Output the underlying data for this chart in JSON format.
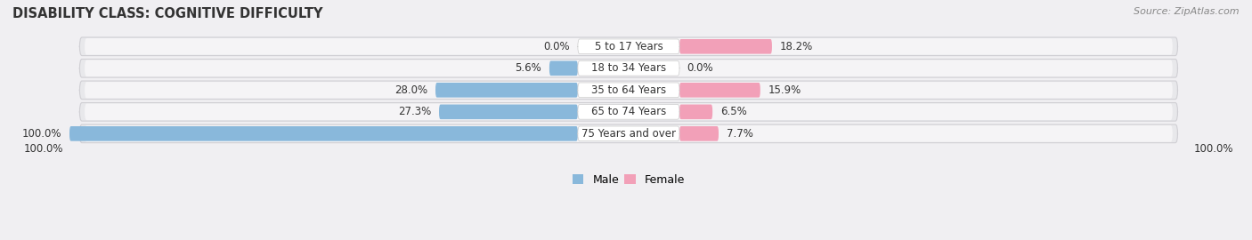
{
  "title": "DISABILITY CLASS: COGNITIVE DIFFICULTY",
  "source": "Source: ZipAtlas.com",
  "categories": [
    "5 to 17 Years",
    "18 to 34 Years",
    "35 to 64 Years",
    "65 to 74 Years",
    "75 Years and over"
  ],
  "male_values": [
    0.0,
    5.6,
    28.0,
    27.3,
    100.0
  ],
  "female_values": [
    18.2,
    0.0,
    15.9,
    6.5,
    7.7
  ],
  "male_color": "#89b8db",
  "female_color": "#f2a0b8",
  "row_bg_color": "#e8e8eb",
  "row_inner_color": "#f5f4f6",
  "bg_color": "#f0eff2",
  "max_value": 100.0,
  "title_fontsize": 10.5,
  "label_fontsize": 8.5,
  "tick_fontsize": 8.5,
  "legend_fontsize": 9,
  "source_fontsize": 8
}
